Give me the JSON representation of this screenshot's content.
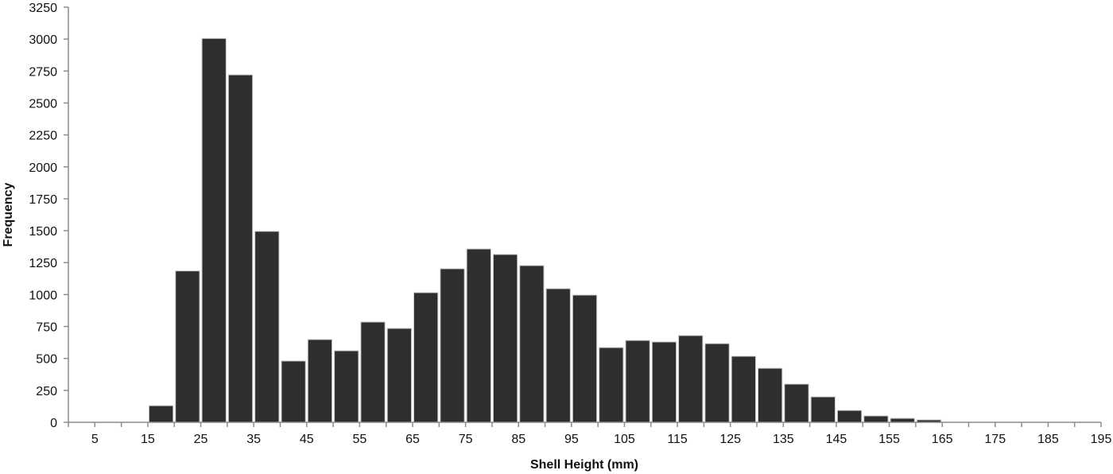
{
  "chart_data": {
    "type": "bar",
    "title": "",
    "xlabel": "Shell Height (mm)",
    "ylabel": "Frequency",
    "ylim": [
      0,
      3250
    ],
    "yticks": [
      0,
      250,
      500,
      750,
      1000,
      1250,
      1500,
      1750,
      2000,
      2250,
      2500,
      2750,
      3000,
      3250
    ],
    "xlim": [
      0,
      195
    ],
    "xtick_labels": [
      "5",
      "15",
      "25",
      "35",
      "45",
      "55",
      "65",
      "75",
      "85",
      "95",
      "105",
      "115",
      "125",
      "135",
      "145",
      "155",
      "165",
      "175",
      "185",
      "195"
    ],
    "bin_width": 5,
    "grid": false,
    "legend": null,
    "bins": [
      {
        "start": 0,
        "end": 5,
        "value": 0
      },
      {
        "start": 5,
        "end": 10,
        "value": 0
      },
      {
        "start": 10,
        "end": 15,
        "value": 0
      },
      {
        "start": 15,
        "end": 20,
        "value": 130
      },
      {
        "start": 20,
        "end": 25,
        "value": 1185
      },
      {
        "start": 25,
        "end": 30,
        "value": 3005
      },
      {
        "start": 30,
        "end": 35,
        "value": 2720
      },
      {
        "start": 35,
        "end": 40,
        "value": 1495
      },
      {
        "start": 40,
        "end": 45,
        "value": 480
      },
      {
        "start": 45,
        "end": 50,
        "value": 648
      },
      {
        "start": 50,
        "end": 55,
        "value": 560
      },
      {
        "start": 55,
        "end": 60,
        "value": 785
      },
      {
        "start": 60,
        "end": 65,
        "value": 735
      },
      {
        "start": 65,
        "end": 70,
        "value": 1015
      },
      {
        "start": 70,
        "end": 75,
        "value": 1202
      },
      {
        "start": 75,
        "end": 80,
        "value": 1357
      },
      {
        "start": 80,
        "end": 85,
        "value": 1314
      },
      {
        "start": 85,
        "end": 90,
        "value": 1227
      },
      {
        "start": 90,
        "end": 95,
        "value": 1046
      },
      {
        "start": 95,
        "end": 100,
        "value": 996
      },
      {
        "start": 100,
        "end": 105,
        "value": 585
      },
      {
        "start": 105,
        "end": 110,
        "value": 641
      },
      {
        "start": 110,
        "end": 115,
        "value": 629
      },
      {
        "start": 115,
        "end": 120,
        "value": 679
      },
      {
        "start": 120,
        "end": 125,
        "value": 616
      },
      {
        "start": 125,
        "end": 130,
        "value": 517
      },
      {
        "start": 130,
        "end": 135,
        "value": 423
      },
      {
        "start": 135,
        "end": 140,
        "value": 299
      },
      {
        "start": 140,
        "end": 145,
        "value": 199
      },
      {
        "start": 145,
        "end": 150,
        "value": 93
      },
      {
        "start": 150,
        "end": 155,
        "value": 50
      },
      {
        "start": 155,
        "end": 160,
        "value": 31
      },
      {
        "start": 160,
        "end": 165,
        "value": 19
      },
      {
        "start": 165,
        "end": 170,
        "value": 0
      },
      {
        "start": 170,
        "end": 175,
        "value": 0
      },
      {
        "start": 175,
        "end": 180,
        "value": 0
      },
      {
        "start": 180,
        "end": 185,
        "value": 0
      },
      {
        "start": 185,
        "end": 190,
        "value": 0
      },
      {
        "start": 190,
        "end": 195,
        "value": 0
      }
    ],
    "colors": {
      "bar": "#2e2e2e",
      "bar_edge": "#c8c8c8",
      "axis": "#8c8c8c",
      "text": "#111111"
    }
  }
}
